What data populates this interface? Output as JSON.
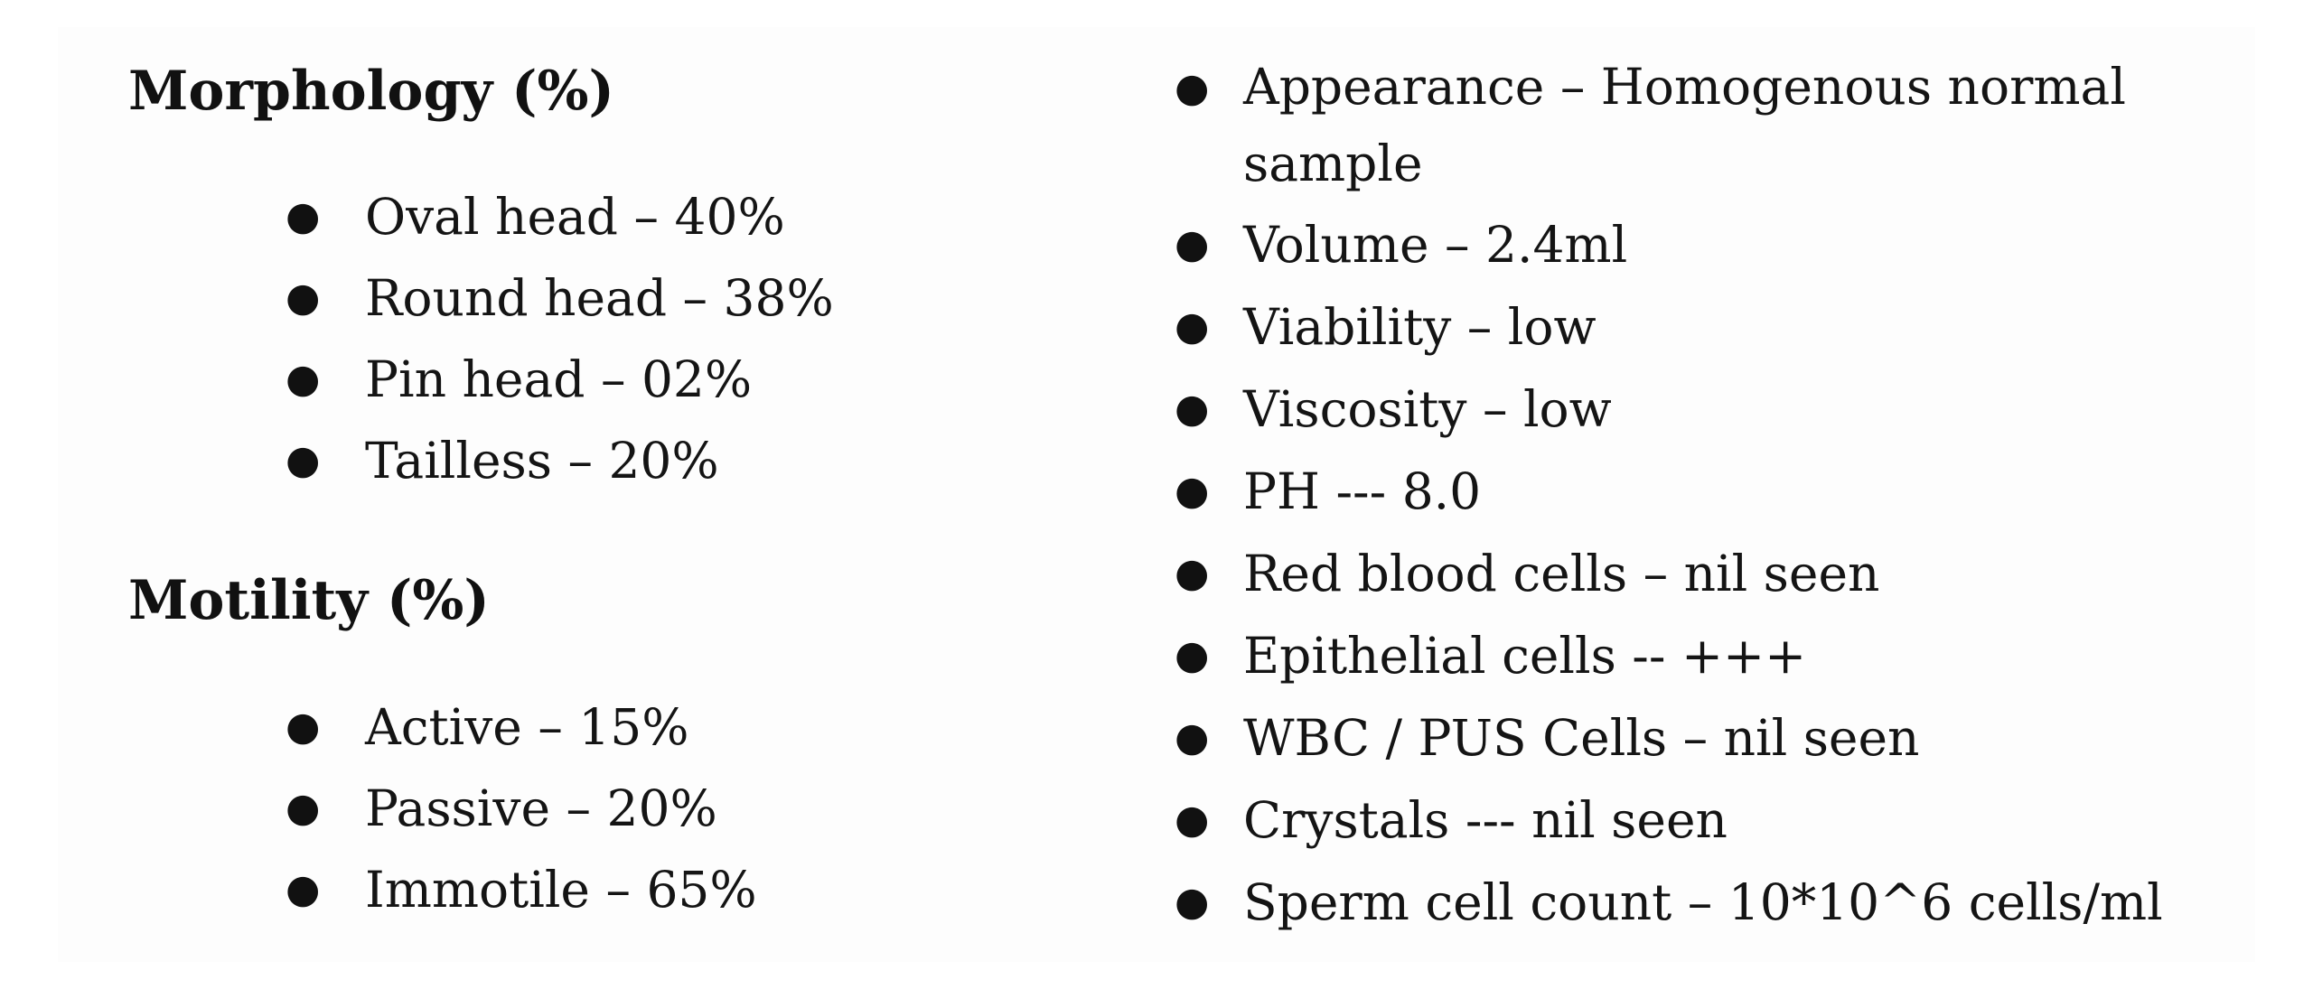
{
  "morphology": {
    "heading": "Morphology (%)",
    "items": [
      "Oval head – 40%",
      "Round head – 38%",
      "Pin head – 02%",
      "Tailless – 20%"
    ]
  },
  "motility": {
    "heading": "Motility (%)",
    "items": [
      "Active – 15%",
      "Passive – 20%",
      "Immotile – 65%"
    ]
  },
  "analysis": {
    "items": [
      "Appearance – Homogenous normal sample",
      "Volume – 2.4ml",
      "Viability – low",
      "Viscosity – low",
      "PH --- 8.0",
      "Red blood cells – nil seen",
      "Epithelial cells -- +++",
      "WBC / PUS Cells – nil seen",
      "Crystals --- nil seen",
      "Sperm cell count – 10*10^6 cells/ml"
    ]
  },
  "bullet_glyph": "●"
}
